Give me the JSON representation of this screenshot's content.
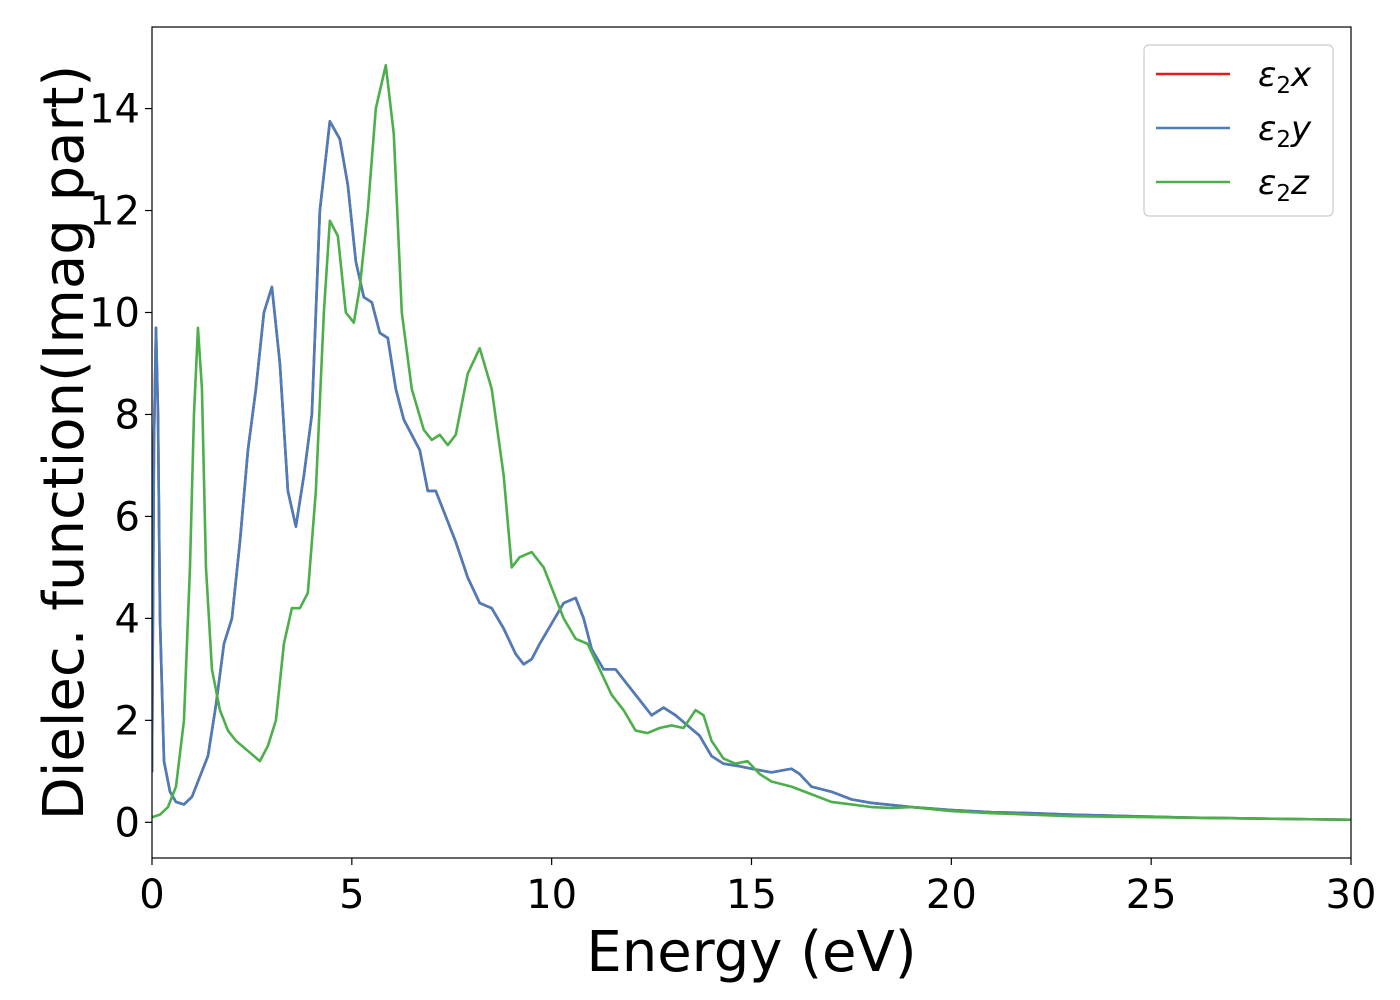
{
  "chart_data": {
    "type": "line",
    "title": "",
    "xlabel": "Energy (eV)",
    "ylabel": "Dielec. function(Imag part)",
    "xlim": [
      0,
      30
    ],
    "ylim": [
      -0.7,
      15.6
    ],
    "xticks": [
      0,
      5,
      10,
      15,
      20,
      25,
      30
    ],
    "yticks": [
      0,
      2,
      4,
      6,
      8,
      10,
      12,
      14
    ],
    "grid": false,
    "legend_position": "top-right",
    "series": [
      {
        "name": "ε₂x",
        "label_base": "ε",
        "label_sub": "2",
        "label_var": "x",
        "color": "#e41a1c",
        "x": [
          0,
          0.05,
          0.1,
          0.15,
          0.2,
          0.3,
          0.45,
          0.6,
          0.8,
          1.0,
          1.2,
          1.4,
          1.6,
          1.8,
          2.0,
          2.2,
          2.4,
          2.6,
          2.8,
          3.0,
          3.2,
          3.4,
          3.6,
          3.8,
          4.0,
          4.2,
          4.45,
          4.7,
          4.9,
          5.1,
          5.3,
          5.5,
          5.7,
          5.9,
          6.1,
          6.3,
          6.5,
          6.7,
          6.9,
          7.1,
          7.3,
          7.6,
          7.9,
          8.2,
          8.5,
          8.8,
          9.1,
          9.3,
          9.5,
          9.7,
          10.0,
          10.3,
          10.6,
          10.8,
          11.0,
          11.3,
          11.6,
          11.9,
          12.2,
          12.5,
          12.8,
          13.1,
          13.4,
          13.7,
          14.0,
          14.3,
          14.7,
          15.0,
          15.5,
          16.0,
          16.2,
          16.5,
          17.0,
          17.5,
          18.0,
          19.0,
          20.0,
          21.0,
          22.0,
          23.0,
          24.0,
          25.0,
          26.0,
          27.0,
          28.0,
          29.0,
          30.0
        ],
        "y": [
          1.0,
          7.5,
          9.7,
          8.0,
          4.0,
          1.2,
          0.6,
          0.4,
          0.35,
          0.5,
          0.9,
          1.3,
          2.3,
          3.5,
          4.0,
          5.5,
          7.3,
          8.5,
          10.0,
          10.5,
          9.0,
          6.5,
          5.8,
          6.8,
          8.0,
          12.0,
          13.75,
          13.4,
          12.5,
          11.0,
          10.3,
          10.2,
          9.6,
          9.5,
          8.5,
          7.9,
          7.6,
          7.3,
          6.5,
          6.5,
          6.1,
          5.5,
          4.8,
          4.3,
          4.2,
          3.8,
          3.3,
          3.1,
          3.2,
          3.5,
          3.9,
          4.3,
          4.4,
          4.0,
          3.4,
          3.0,
          3.0,
          2.7,
          2.4,
          2.1,
          2.25,
          2.1,
          1.9,
          1.7,
          1.3,
          1.15,
          1.1,
          1.05,
          0.98,
          1.05,
          0.95,
          0.7,
          0.6,
          0.45,
          0.38,
          0.3,
          0.24,
          0.2,
          0.18,
          0.15,
          0.13,
          0.11,
          0.09,
          0.08,
          0.07,
          0.06,
          0.05
        ]
      },
      {
        "name": "ε₂y",
        "label_base": "ε",
        "label_sub": "2",
        "label_var": "y",
        "color": "#4a7eba",
        "x": [
          0,
          0.05,
          0.1,
          0.15,
          0.2,
          0.3,
          0.45,
          0.6,
          0.8,
          1.0,
          1.2,
          1.4,
          1.6,
          1.8,
          2.0,
          2.2,
          2.4,
          2.6,
          2.8,
          3.0,
          3.2,
          3.4,
          3.6,
          3.8,
          4.0,
          4.2,
          4.45,
          4.7,
          4.9,
          5.1,
          5.3,
          5.5,
          5.7,
          5.9,
          6.1,
          6.3,
          6.5,
          6.7,
          6.9,
          7.1,
          7.3,
          7.6,
          7.9,
          8.2,
          8.5,
          8.8,
          9.1,
          9.3,
          9.5,
          9.7,
          10.0,
          10.3,
          10.6,
          10.8,
          11.0,
          11.3,
          11.6,
          11.9,
          12.2,
          12.5,
          12.8,
          13.1,
          13.4,
          13.7,
          14.0,
          14.3,
          14.7,
          15.0,
          15.5,
          16.0,
          16.2,
          16.5,
          17.0,
          17.5,
          18.0,
          19.0,
          20.0,
          21.0,
          22.0,
          23.0,
          24.0,
          25.0,
          26.0,
          27.0,
          28.0,
          29.0,
          30.0
        ],
        "y": [
          1.0,
          7.5,
          9.7,
          8.0,
          4.0,
          1.2,
          0.6,
          0.4,
          0.35,
          0.5,
          0.9,
          1.3,
          2.3,
          3.5,
          4.0,
          5.5,
          7.3,
          8.5,
          10.0,
          10.5,
          9.0,
          6.5,
          5.8,
          6.8,
          8.0,
          12.0,
          13.75,
          13.4,
          12.5,
          11.0,
          10.3,
          10.2,
          9.6,
          9.5,
          8.5,
          7.9,
          7.6,
          7.3,
          6.5,
          6.5,
          6.1,
          5.5,
          4.8,
          4.3,
          4.2,
          3.8,
          3.3,
          3.1,
          3.2,
          3.5,
          3.9,
          4.3,
          4.4,
          4.0,
          3.4,
          3.0,
          3.0,
          2.7,
          2.4,
          2.1,
          2.25,
          2.1,
          1.9,
          1.7,
          1.3,
          1.15,
          1.1,
          1.05,
          0.98,
          1.05,
          0.95,
          0.7,
          0.6,
          0.45,
          0.38,
          0.3,
          0.24,
          0.2,
          0.18,
          0.15,
          0.13,
          0.11,
          0.09,
          0.08,
          0.07,
          0.06,
          0.05
        ]
      },
      {
        "name": "ε₂z",
        "label_base": "ε",
        "label_sub": "2",
        "label_var": "z",
        "color": "#4daf4a",
        "x": [
          0,
          0.2,
          0.4,
          0.6,
          0.8,
          0.95,
          1.05,
          1.15,
          1.25,
          1.35,
          1.5,
          1.7,
          1.9,
          2.1,
          2.4,
          2.7,
          2.9,
          3.1,
          3.3,
          3.5,
          3.7,
          3.9,
          4.1,
          4.3,
          4.45,
          4.65,
          4.85,
          5.05,
          5.2,
          5.4,
          5.6,
          5.85,
          6.05,
          6.25,
          6.5,
          6.8,
          7.0,
          7.2,
          7.4,
          7.6,
          7.9,
          8.2,
          8.5,
          8.8,
          9.0,
          9.2,
          9.5,
          9.8,
          10.0,
          10.3,
          10.6,
          10.9,
          11.2,
          11.5,
          11.8,
          12.1,
          12.4,
          12.7,
          13.0,
          13.3,
          13.6,
          13.8,
          14.0,
          14.3,
          14.6,
          14.9,
          15.2,
          15.5,
          16.0,
          16.5,
          17.0,
          17.5,
          18.0,
          18.5,
          19.0,
          20.0,
          21.0,
          22.0,
          23.0,
          24.0,
          25.0,
          26.0,
          27.0,
          28.0,
          29.0,
          30.0
        ],
        "y": [
          0.1,
          0.15,
          0.3,
          0.7,
          2.0,
          5.0,
          8.0,
          9.7,
          8.5,
          5.0,
          3.0,
          2.2,
          1.8,
          1.6,
          1.4,
          1.2,
          1.5,
          2.0,
          3.5,
          4.2,
          4.2,
          4.5,
          6.5,
          10.0,
          11.8,
          11.5,
          10.0,
          9.8,
          10.5,
          12.0,
          14.0,
          14.85,
          13.5,
          10.0,
          8.5,
          7.7,
          7.5,
          7.6,
          7.4,
          7.6,
          8.8,
          9.3,
          8.5,
          6.8,
          5.0,
          5.2,
          5.3,
          5.0,
          4.6,
          4.0,
          3.6,
          3.5,
          3.0,
          2.5,
          2.2,
          1.8,
          1.75,
          1.85,
          1.9,
          1.85,
          2.2,
          2.1,
          1.6,
          1.25,
          1.15,
          1.2,
          0.95,
          0.8,
          0.7,
          0.55,
          0.4,
          0.35,
          0.3,
          0.28,
          0.3,
          0.22,
          0.18,
          0.15,
          0.12,
          0.11,
          0.1,
          0.09,
          0.08,
          0.07,
          0.06,
          0.05
        ]
      }
    ]
  }
}
